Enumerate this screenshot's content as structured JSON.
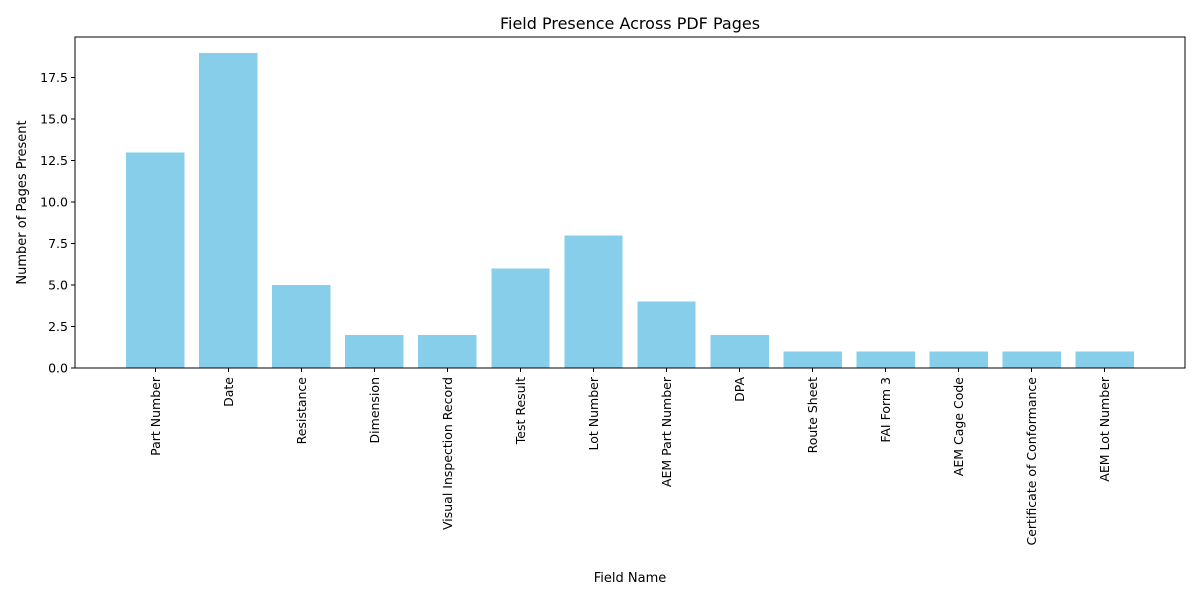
{
  "chart_data": {
    "type": "bar",
    "title": "Field Presence Across PDF Pages",
    "xlabel": "Field Name",
    "ylabel": "Number of Pages Present",
    "categories": [
      "Part Number",
      "Date",
      "Resistance",
      "Dimension",
      "Visual Inspection Record",
      "Test Result",
      "Lot Number",
      "AEM Part Number",
      "DPA",
      "Route Sheet",
      "FAI Form 3",
      "AEM Cage Code",
      "Certificate of Conformance",
      "AEM Lot Number"
    ],
    "values": [
      13,
      19,
      5,
      2,
      2,
      6,
      8,
      4,
      2,
      1,
      1,
      1,
      1,
      1
    ],
    "ylim": [
      0,
      19.95
    ],
    "yticks": [
      0.0,
      2.5,
      5.0,
      7.5,
      10.0,
      12.5,
      15.0,
      17.5
    ],
    "ytick_labels": [
      "0.0",
      "2.5",
      "5.0",
      "7.5",
      "10.0",
      "12.5",
      "15.0",
      "17.5"
    ],
    "grid": false,
    "bar_color": "#87ceeb"
  }
}
